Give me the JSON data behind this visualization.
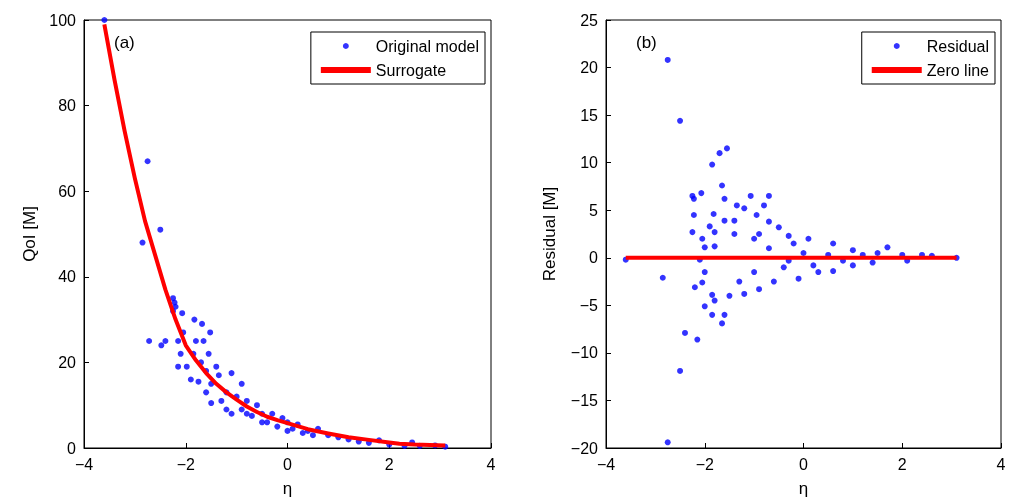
{
  "chart_data": [
    {
      "type": "scatter",
      "xlabel": "η",
      "ylabel": "QoI [M]",
      "xlim": [
        -4,
        4
      ],
      "xticks": [
        -4,
        -2,
        0,
        2,
        4
      ],
      "ylim": [
        0,
        100
      ],
      "yticks": [
        0,
        20,
        40,
        60,
        80,
        100
      ],
      "legend": "top right",
      "annotations": [
        "(a)"
      ],
      "series": [
        {
          "name": "Original model",
          "marker": "circle",
          "color": "#0000ff",
          "x": [
            -3.6,
            -2.75,
            -2.5,
            -2.85,
            -2.72,
            -2.48,
            -2.4,
            -2.25,
            -2.22,
            -2.2,
            -2.25,
            -2.07,
            -2.05,
            -2.15,
            -1.83,
            -1.68,
            -1.52,
            -2.15,
            -1.98,
            -1.8,
            -1.65,
            -1.85,
            -1.7,
            -1.6,
            -1.55,
            -1.4,
            -1.75,
            -1.5,
            -1.35,
            -1.1,
            -0.9,
            -1.2,
            -1.5,
            -1.3,
            -1.0,
            -0.8,
            -0.6,
            -1.1,
            -0.9,
            -0.7,
            -0.5,
            -0.4,
            -0.3,
            -0.2,
            -0.1,
            0,
            0.1,
            0.2,
            0.4,
            0.5,
            0.6,
            0.8,
            1.0,
            1.2,
            1.4,
            1.6,
            1.8,
            2.0,
            2.3,
            2.45,
            2.6,
            2.9,
            3.1,
            -1.2,
            -0.8,
            -0.5,
            0,
            0.3,
            -1.6,
            -1.9,
            -2.1
          ],
          "values": [
            100,
            67,
            51,
            48,
            25,
            24,
            25,
            35,
            34,
            33,
            32,
            31.5,
            27,
            25,
            30,
            29,
            27,
            19,
            19,
            25,
            25,
            22,
            20,
            18,
            22,
            19,
            15.5,
            15,
            17,
            17.5,
            15,
            13,
            10.5,
            11,
            12,
            11,
            10,
            8,
            9,
            7.5,
            8,
            6,
            8,
            5,
            7,
            6,
            4.5,
            5.5,
            4,
            3,
            4.5,
            3,
            2.5,
            2,
            1.5,
            1.2,
            1.8,
            0.8,
            0.5,
            1.3,
            0.5,
            0.6,
            0.3,
            9,
            8,
            6,
            4,
            3.5,
            13,
            16,
            22
          ]
        },
        {
          "name": "Surrogate",
          "type": "line",
          "marker": "none",
          "color": "#ff0000",
          "x": [
            -3.6,
            -3.4,
            -3.2,
            -3.0,
            -2.8,
            -2.6,
            -2.4,
            -2.2,
            -2.0,
            -1.8,
            -1.6,
            -1.4,
            -1.2,
            -1.0,
            -0.8,
            -0.6,
            -0.4,
            -0.2,
            0,
            0.4,
            0.8,
            1.2,
            1.6,
            2.0,
            2.2,
            2.5,
            3.1
          ],
          "values": [
            99,
            86,
            74,
            63,
            53,
            45,
            37,
            30,
            24,
            20.5,
            17.5,
            15,
            13,
            11.3,
            9.7,
            8.4,
            7.3,
            6.5,
            5.8,
            4.4,
            3.4,
            2.5,
            1.9,
            1.3,
            1,
            0.8,
            0.6
          ]
        }
      ]
    },
    {
      "type": "scatter",
      "xlabel": "η",
      "ylabel": "Residual [M]",
      "xlim": [
        -4,
        4
      ],
      "xticks": [
        -4,
        -2,
        0,
        2,
        4
      ],
      "ylim": [
        -20,
        25
      ],
      "yticks": [
        -20,
        -15,
        -10,
        -5,
        0,
        5,
        10,
        15,
        20,
        25
      ],
      "legend": "top right",
      "annotations": [
        "(b)"
      ],
      "series": [
        {
          "name": "Residual",
          "marker": "circle",
          "color": "#0000ff",
          "x": [
            -2.75,
            -2.5,
            -1.55,
            -1.7,
            -1.85,
            -1.65,
            -2.07,
            -2.25,
            -2.22,
            -1.6,
            -1.07,
            -0.7,
            -1.35,
            -0.8,
            -1.2,
            -2.22,
            -1.82,
            -0.95,
            -1.6,
            -1.4,
            -0.7,
            -2.25,
            -2.05,
            -1.9,
            -1.8,
            -1.4,
            -1.0,
            -0.5,
            -0.3,
            -2.0,
            -1.8,
            -0.9,
            -0.2,
            0.1,
            0.6,
            1.7,
            1.0,
            1.5,
            2.0,
            2.4,
            2.6,
            3.1,
            -3.6,
            -2.85,
            -2.1,
            -2.0,
            -2.05,
            -2.2,
            -1.85,
            -1.8,
            -2.0,
            -1.85,
            -1.6,
            -1.65,
            -2.4,
            -2.15,
            -2.5,
            -2.75,
            -1.5,
            -1.2,
            -0.9,
            -1.3,
            -0.6,
            -0.1,
            0.3,
            0.6,
            1.0,
            1.4,
            2.1,
            -0.4,
            0.2,
            -1.0,
            -0.7,
            0,
            0.5,
            0.8,
            1.2,
            -0.3
          ],
          "values": [
            20.8,
            14.4,
            11.5,
            11,
            9.8,
            7.6,
            6.8,
            6.5,
            6.2,
            6.2,
            6.5,
            6.5,
            5.5,
            5.5,
            5.2,
            4.5,
            4.6,
            4.5,
            3.9,
            3.9,
            3.8,
            2.7,
            2,
            3.3,
            2.7,
            2.5,
            2,
            3.2,
            2.3,
            1.1,
            1.2,
            2.5,
            1.5,
            2,
            1.5,
            1.1,
            0.8,
            0.5,
            0.3,
            0.3,
            0.2,
            0,
            -0.2,
            -2.1,
            -0.2,
            -1.5,
            -2.6,
            -3.1,
            -3.9,
            -4.5,
            -5.1,
            -6,
            -6,
            -6.9,
            -7.9,
            -8.6,
            -11.9,
            -19.4,
            -4,
            -3.8,
            -3.3,
            -2.5,
            -2.5,
            -2.2,
            -1.5,
            -1.4,
            -0.8,
            -0.5,
            -0.3,
            -1,
            -0.8,
            -1.5,
            1,
            0.5,
            0.3,
            -0.3,
            0.3,
            -0.3
          ]
        },
        {
          "name": "Zero line",
          "type": "line",
          "marker": "none",
          "color": "#ff0000",
          "x": [
            -3.6,
            3.1
          ],
          "values": [
            0,
            0
          ]
        }
      ]
    }
  ]
}
